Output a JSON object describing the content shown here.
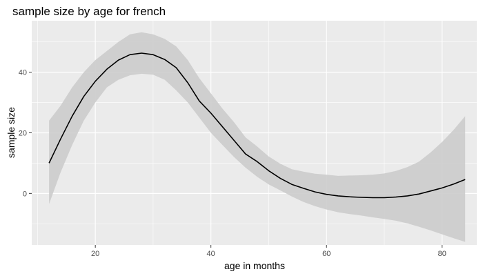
{
  "chart_data": {
    "type": "line",
    "title": "sample size by age for french",
    "xlabel": "age in months",
    "ylabel": "sample size",
    "xlim": [
      9,
      86
    ],
    "ylim": [
      -17,
      57
    ],
    "x_ticks": [
      20,
      40,
      60,
      80
    ],
    "y_ticks": [
      0,
      20,
      40
    ],
    "grid": true,
    "background": "#ebebeb",
    "ribbon_color": "#cccccc",
    "line_color": "#000000",
    "series": [
      {
        "x": [
          12,
          14,
          16,
          18,
          20,
          22,
          24,
          26,
          28,
          30,
          32,
          34,
          36,
          38,
          40,
          42,
          44,
          46,
          48,
          50,
          52,
          54,
          56,
          58,
          60,
          62,
          64,
          66,
          68,
          70,
          72,
          74,
          76,
          78,
          80,
          82,
          84
        ],
        "y": [
          10,
          18,
          25.5,
          32,
          37,
          41,
          44,
          45.8,
          46.3,
          45.8,
          44.2,
          41.5,
          36.5,
          30.5,
          26.5,
          22,
          17.5,
          13,
          10.5,
          7.5,
          5,
          3,
          1.7,
          0.5,
          -0.3,
          -0.8,
          -1.1,
          -1.3,
          -1.4,
          -1.4,
          -1.2,
          -0.8,
          -0.2,
          0.8,
          1.8,
          3.1,
          4.6
        ],
        "ymin": [
          -3.5,
          7,
          16,
          24,
          30,
          35,
          37.5,
          39,
          39.5,
          39.2,
          37.5,
          34,
          30,
          25,
          20,
          16,
          12,
          8.5,
          5.5,
          3,
          1,
          -1,
          -2.8,
          -4.2,
          -5.3,
          -6.2,
          -6.8,
          -7.3,
          -7.9,
          -8.4,
          -9,
          -9.9,
          -11,
          -12.2,
          -13.5,
          -14.8,
          -16
        ],
        "ymax": [
          24,
          29,
          35,
          40,
          44,
          47,
          50,
          52.5,
          53.2,
          52.5,
          51,
          48.5,
          44,
          38,
          33,
          28,
          23.5,
          18.5,
          15.5,
          12.2,
          9.8,
          8,
          7.2,
          6.5,
          6.2,
          5.8,
          5.9,
          6,
          6.2,
          6.6,
          7.4,
          8.7,
          10.5,
          13.5,
          17,
          21,
          25.5
        ]
      }
    ]
  }
}
